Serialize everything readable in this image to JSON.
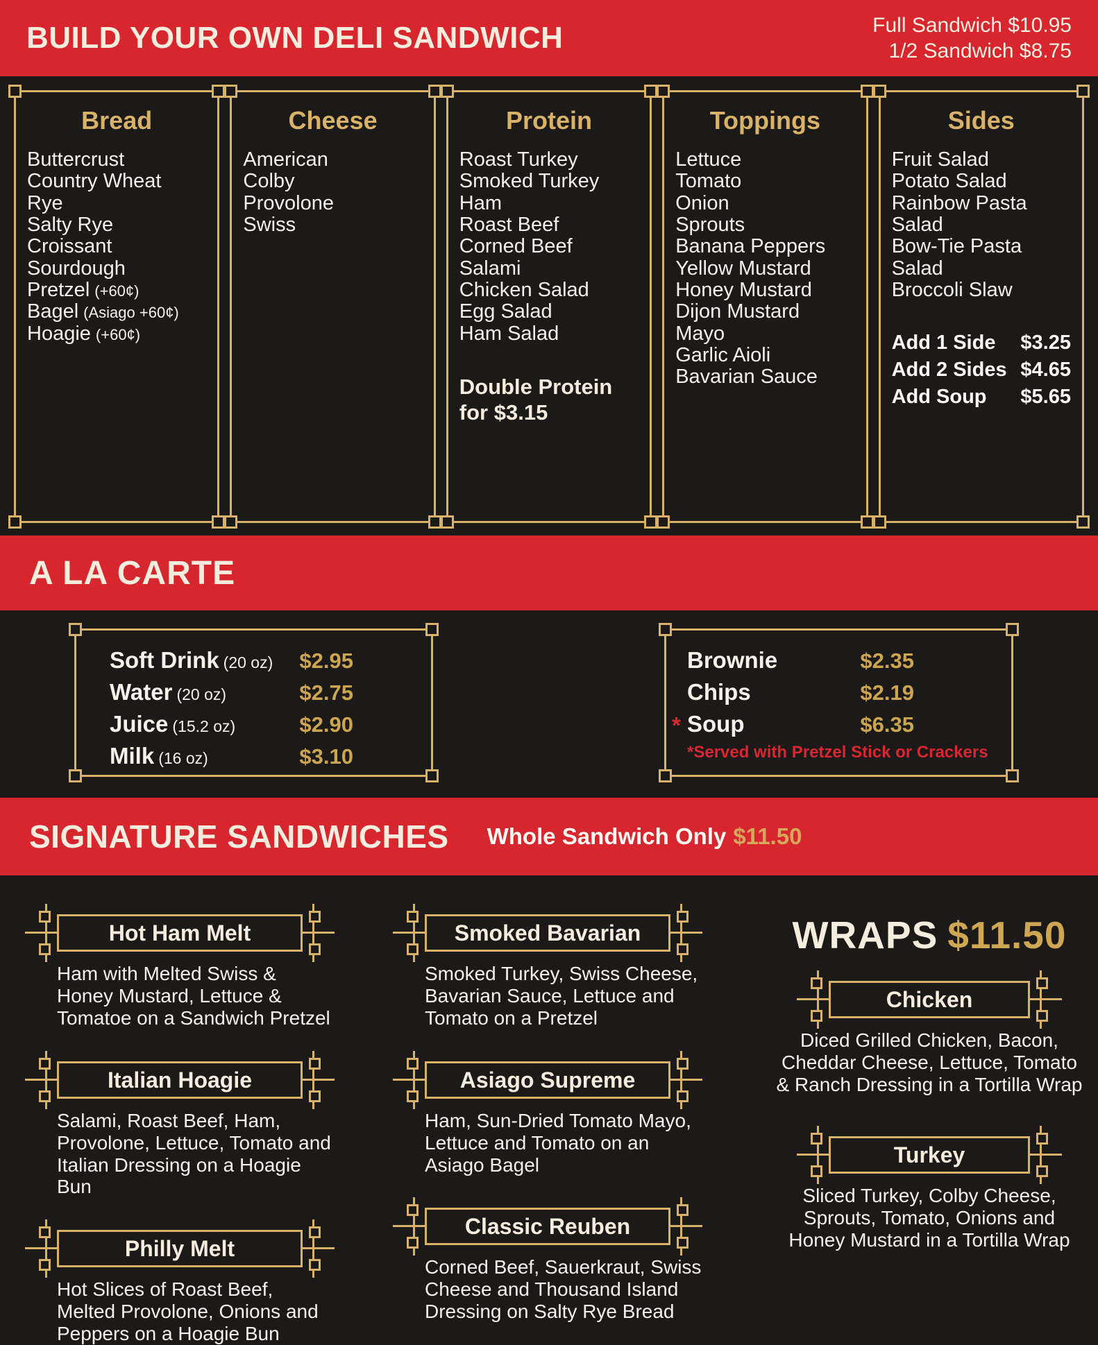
{
  "colors": {
    "banner_red": "#d7262e",
    "background": "#1c1a19",
    "gold_border": "#d9b269",
    "gold_price": "#cda551",
    "cream_heading": "#f4ecdd",
    "body_text": "#f5f1ea",
    "note_red": "#da2630"
  },
  "header": {
    "title": "BUILD YOUR OWN DELI SANDWICH",
    "full_price": "Full Sandwich $10.95",
    "half_price": "1/2 Sandwich $8.75"
  },
  "builder": {
    "columns": [
      {
        "title": "Bread",
        "items": [
          {
            "t": "Buttercrust",
            "n": ""
          },
          {
            "t": "Country Wheat",
            "n": ""
          },
          {
            "t": "Rye",
            "n": ""
          },
          {
            "t": "Salty Rye",
            "n": ""
          },
          {
            "t": "Croissant",
            "n": ""
          },
          {
            "t": "Sourdough",
            "n": ""
          },
          {
            "t": "Pretzel",
            "n": "(+60¢)"
          },
          {
            "t": "Bagel",
            "n": "(Asiago +60¢)"
          },
          {
            "t": "Hoagie",
            "n": "(+60¢)"
          }
        ]
      },
      {
        "title": "Cheese",
        "items": [
          {
            "t": "American",
            "n": ""
          },
          {
            "t": "Colby",
            "n": ""
          },
          {
            "t": "Provolone",
            "n": ""
          },
          {
            "t": "Swiss",
            "n": ""
          }
        ]
      },
      {
        "title": "Protein",
        "items": [
          {
            "t": "Roast Turkey",
            "n": ""
          },
          {
            "t": "Smoked Turkey",
            "n": ""
          },
          {
            "t": "Ham",
            "n": ""
          },
          {
            "t": "Roast Beef",
            "n": ""
          },
          {
            "t": "Corned Beef",
            "n": ""
          },
          {
            "t": "Salami",
            "n": ""
          },
          {
            "t": "Chicken Salad",
            "n": ""
          },
          {
            "t": "Egg Salad",
            "n": ""
          },
          {
            "t": "Ham Salad",
            "n": ""
          }
        ],
        "note": "Double Protein for $3.15"
      },
      {
        "title": "Toppings",
        "items": [
          {
            "t": "Lettuce",
            "n": ""
          },
          {
            "t": "Tomato",
            "n": ""
          },
          {
            "t": "Onion",
            "n": ""
          },
          {
            "t": "Sprouts",
            "n": ""
          },
          {
            "t": "Banana Peppers",
            "n": ""
          },
          {
            "t": "Yellow Mustard",
            "n": ""
          },
          {
            "t": "Honey Mustard",
            "n": ""
          },
          {
            "t": "Dijon Mustard",
            "n": ""
          },
          {
            "t": "Mayo",
            "n": ""
          },
          {
            "t": "Garlic Aioli",
            "n": ""
          },
          {
            "t": "Bavarian Sauce",
            "n": ""
          }
        ]
      },
      {
        "title": "Sides",
        "items": [
          {
            "t": "Fruit Salad",
            "n": ""
          },
          {
            "t": "Potato Salad",
            "n": ""
          },
          {
            "t": "Rainbow Pasta Salad",
            "n": ""
          },
          {
            "t": "Bow-Tie Pasta Salad",
            "n": ""
          },
          {
            "t": "Broccoli Slaw",
            "n": ""
          }
        ],
        "addons": [
          {
            "label": "Add 1 Side",
            "price": "$3.25"
          },
          {
            "label": "Add 2 Sides",
            "price": "$4.65"
          },
          {
            "label": "Add Soup",
            "price": "$5.65"
          }
        ]
      }
    ]
  },
  "alacarte": {
    "title": "A LA CARTE",
    "drinks": [
      {
        "star": "",
        "name": "Soft Drink",
        "size": "(20 oz)",
        "price": "$2.95"
      },
      {
        "star": "",
        "name": "Water",
        "size": "(20 oz)",
        "price": "$2.75"
      },
      {
        "star": "",
        "name": "Juice",
        "size": "(15.2 oz)",
        "price": "$2.90"
      },
      {
        "star": "",
        "name": "Milk",
        "size": "(16 oz)",
        "price": "$3.10"
      }
    ],
    "snacks": [
      {
        "star": "",
        "name": "Brownie",
        "size": "",
        "price": "$2.35"
      },
      {
        "star": "",
        "name": "Chips",
        "size": "",
        "price": "$2.19"
      },
      {
        "star": "*",
        "name": "Soup",
        "size": "",
        "price": "$6.35"
      }
    ],
    "footnote": "*Served with Pretzel Stick or Crackers"
  },
  "signature": {
    "title": "SIGNATURE SANDWICHES",
    "subtitle": "Whole Sandwich Only",
    "price": "$11.50",
    "left": [
      {
        "name": "Hot Ham Melt",
        "desc": "Ham with Melted Swiss & Honey Mustard, Lettuce & Tomatoe on a Sandwich Pretzel"
      },
      {
        "name": "Italian Hoagie",
        "desc": "Salami, Roast Beef, Ham, Provolone, Lettuce, Tomato and Italian Dressing on a Hoagie Bun"
      },
      {
        "name": "Philly Melt",
        "desc": "Hot Slices of Roast Beef, Melted Provolone, Onions and Peppers on a Hoagie Bun"
      }
    ],
    "middle": [
      {
        "name": "Smoked Bavarian",
        "desc": "Smoked Turkey, Swiss Cheese, Bavarian Sauce, Lettuce and Tomato on a Pretzel"
      },
      {
        "name": "Asiago Supreme",
        "desc": "Ham, Sun-Dried Tomato Mayo, Lettuce and Tomato on an Asiago Bagel"
      },
      {
        "name": "Classic Reuben",
        "desc": "Corned Beef, Sauerkraut, Swiss Cheese and Thousand Island Dressing on Salty Rye Bread"
      }
    ],
    "wraps": {
      "title": "WRAPS",
      "price": "$11.50",
      "items": [
        {
          "name": "Chicken",
          "desc": "Diced Grilled Chicken, Bacon, Cheddar Cheese, Lettuce, Tomato & Ranch Dressing in a Tortilla Wrap"
        },
        {
          "name": "Turkey",
          "desc": "Sliced Turkey, Colby Cheese, Sprouts, Tomato, Onions and Honey Mustard in a Tortilla Wrap"
        }
      ]
    }
  }
}
